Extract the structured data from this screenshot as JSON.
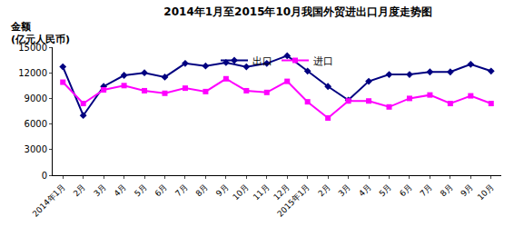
{
  "chart_data": {
    "type": "line",
    "title": "2014年1月至2015年10月我国外贸进出口月度走势图",
    "ylabel": "金额\n(亿元人民币)",
    "categories": [
      "2014年1月",
      "2月",
      "3月",
      "4月",
      "5月",
      "6月",
      "7月",
      "8月",
      "9月",
      "10月",
      "11月",
      "12月",
      "2015年1月",
      "2月",
      "3月",
      "4月",
      "5月",
      "6月",
      "7月",
      "8月",
      "9月",
      "10月"
    ],
    "series": [
      {
        "name": "出口",
        "color": "#000080",
        "marker": "diamond",
        "values": [
          12700,
          7000,
          10400,
          11700,
          12000,
          11500,
          13100,
          12800,
          13200,
          12700,
          13100,
          14000,
          12200,
          10400,
          8800,
          11000,
          11800,
          11800,
          12100,
          12100,
          13000,
          12200
        ]
      },
      {
        "name": "进口",
        "color": "#FF00FF",
        "marker": "square",
        "values": [
          10900,
          8400,
          10000,
          10500,
          9900,
          9600,
          10200,
          9800,
          11300,
          9900,
          9700,
          11000,
          8600,
          6700,
          8700,
          8700,
          8000,
          9000,
          9400,
          8400,
          9300,
          8400
        ]
      }
    ],
    "ylim": [
      0,
      15000
    ],
    "yticks": [
      0,
      3000,
      6000,
      9000,
      12000,
      15000
    ],
    "grid": false,
    "legend": "top"
  }
}
